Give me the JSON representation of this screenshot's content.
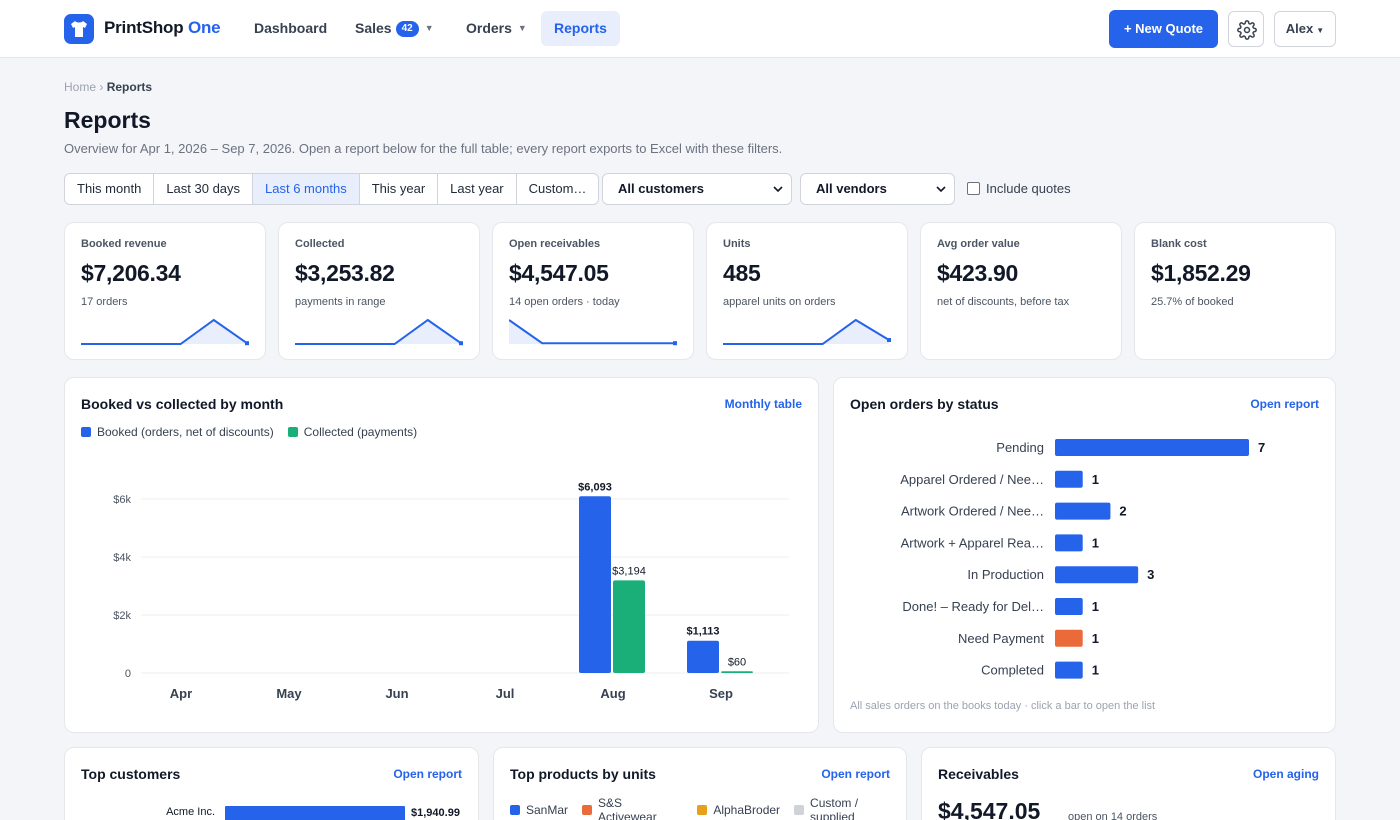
{
  "nav": {
    "brand_main": "PrintShop",
    "brand_accent": "One",
    "items": [
      {
        "label": "Dashboard"
      },
      {
        "label": "Sales",
        "badge": "42"
      },
      {
        "label": "Orders"
      },
      {
        "label": "Reports"
      }
    ],
    "new_quote": "+ New Quote",
    "user": "Alex"
  },
  "breadcrumb": {
    "home": "Home",
    "sep": "›",
    "current": "Reports"
  },
  "page": {
    "title": "Reports",
    "subtitle": "Overview for Apr 1, 2026 – Sep 7, 2026. Open a report below for the full table; every report exports to Excel with these filters."
  },
  "filters": {
    "ranges": [
      "This month",
      "Last 30 days",
      "Last 6 months",
      "This year",
      "Last year",
      "Custom…"
    ],
    "active_range": "Last 6 months",
    "customers": "All customers",
    "vendors": "All vendors",
    "include_quotes": "Include quotes"
  },
  "stats": [
    {
      "label": "Booked revenue",
      "value": "$7,206.34",
      "sub": "17 orders",
      "trend": [
        0,
        0,
        0,
        0,
        0.6,
        0.02
      ]
    },
    {
      "label": "Collected",
      "value": "$3,253.82",
      "sub": "payments in range",
      "trend": [
        0,
        0,
        0,
        0,
        0.6,
        0.02
      ]
    },
    {
      "label": "Open receivables",
      "value": "$4,547.05",
      "sub": "14 open orders · today",
      "trend": [
        0.6,
        0.02,
        0.02,
        0.02,
        0.02,
        0.02
      ]
    },
    {
      "label": "Units",
      "value": "485",
      "sub": "apparel units on orders",
      "trend": [
        0,
        0,
        0,
        0,
        0.6,
        0.1
      ]
    },
    {
      "label": "Avg order value",
      "value": "$423.90",
      "sub": "net of discounts, before tax"
    },
    {
      "label": "Blank cost",
      "value": "$1,852.29",
      "sub": "25.7% of booked"
    }
  ],
  "colors": {
    "blue": "#2563eb",
    "green": "#1aaf78",
    "orange": "#ea6a3a",
    "amber": "#e6a019",
    "gray": "#cfd3d8"
  },
  "booked_panel": {
    "title": "Booked vs collected by month",
    "link": "Monthly table",
    "legend": [
      "Booked (orders, net of discounts)",
      "Collected (payments)"
    ]
  },
  "status_panel": {
    "title": "Open orders by status",
    "link": "Open report",
    "footnote": "All sales orders on the books today · click a bar to open the list"
  },
  "customers_panel": {
    "title": "Top customers",
    "link": "Open report",
    "first_customer": "Acme Inc.",
    "first_value": "$1,940.99"
  },
  "products_panel": {
    "title": "Top products by units",
    "link": "Open report",
    "legend": [
      "SanMar",
      "S&S Activewear",
      "AlphaBroder",
      "Custom / supplied"
    ]
  },
  "receivables_panel": {
    "title": "Receivables",
    "link": "Open aging",
    "total": "$4,547.05",
    "note": "open on 14 orders"
  },
  "chart_data": [
    {
      "type": "bar",
      "title": "Booked vs collected by month",
      "categories": [
        "Apr",
        "May",
        "Jun",
        "Jul",
        "Aug",
        "Sep"
      ],
      "series": [
        {
          "name": "Booked (orders, net of discounts)",
          "values": [
            0,
            0,
            0,
            0,
            6093,
            1113
          ],
          "labels": [
            "",
            "",
            "",
            "",
            "$6,093",
            "$1,113"
          ]
        },
        {
          "name": "Collected (payments)",
          "values": [
            0,
            0,
            0,
            0,
            3194,
            60
          ],
          "labels": [
            "",
            "",
            "",
            "",
            "$3,194",
            "$60"
          ]
        }
      ],
      "ylim": [
        0,
        6000
      ],
      "yticks": [
        0,
        2000,
        4000,
        6000
      ],
      "ytick_labels": [
        "0",
        "$2k",
        "$4k",
        "$6k"
      ],
      "grid": true,
      "legend": "top-left"
    },
    {
      "type": "bar",
      "orientation": "horizontal",
      "title": "Open orders by status",
      "categories": [
        "Pending",
        "Apparel Ordered / Nee…",
        "Artwork Ordered / Nee…",
        "Artwork + Apparel Rea…",
        "In Production",
        "Done! – Ready for Del…",
        "Need Payment",
        "Completed"
      ],
      "values": [
        7,
        1,
        2,
        1,
        3,
        1,
        1,
        1
      ],
      "highlight": "Need Payment"
    },
    {
      "type": "bar",
      "orientation": "horizontal",
      "title": "Top customers",
      "categories": [
        "Acme Inc."
      ],
      "values": [
        1940.99
      ],
      "labels": [
        "$1,940.99"
      ]
    }
  ]
}
